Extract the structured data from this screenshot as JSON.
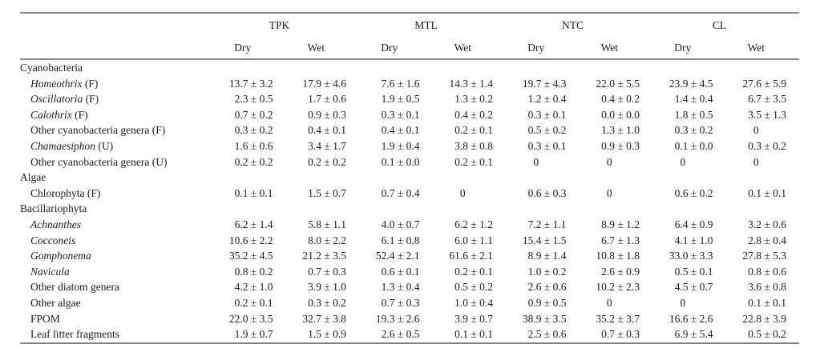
{
  "page": {
    "background_color": "#ffffff",
    "text_color": "#1d1d27",
    "rule_color": "#8a8a8a"
  },
  "table": {
    "column_groups": [
      {
        "label": "TPK",
        "sub": [
          "Dry",
          "Wet"
        ]
      },
      {
        "label": "MTL",
        "sub": [
          "Dry",
          "Wet"
        ]
      },
      {
        "label": "NTC",
        "sub": [
          "Dry",
          "Wet"
        ]
      },
      {
        "label": "CL",
        "sub": [
          "Dry",
          "Wet"
        ]
      }
    ],
    "rows": [
      {
        "type": "section",
        "label": "Cyanobacteria"
      },
      {
        "type": "data",
        "italic": true,
        "label": "Homeothrix",
        "suffix": " (F)",
        "values": [
          "13.7 ± 3.2",
          "17.9 ± 4.6",
          "7.6 ± 1.6",
          "14.3 ± 1.4",
          "19.7 ± 4.3",
          "22.0 ± 5.5",
          "23.9 ± 4.5",
          "27.6 ± 5.9"
        ]
      },
      {
        "type": "data",
        "italic": true,
        "label": "Oscillatoria",
        "suffix": " (F)",
        "values": [
          "2.3 ± 0.5",
          "1.7 ± 0.6",
          "1.9 ± 0.5",
          "1.3 ± 0.2",
          "1.2 ± 0.4",
          "0.4 ± 0.2",
          "1.4 ± 0.4",
          "6.7 ± 3.5"
        ]
      },
      {
        "type": "data",
        "italic": true,
        "label": "Calothrix",
        "suffix": " (F)",
        "values": [
          "0.7 ± 0.2",
          "0.9 ± 0.3",
          "0.3 ± 0.1",
          "0.4 ± 0.2",
          "0.3 ± 0.1",
          "0.0 ± 0.0",
          "1.8 ± 0.5",
          "3.5 ± 1.3"
        ]
      },
      {
        "type": "data",
        "italic": false,
        "label": "Other cyanobacteria genera (F)",
        "values": [
          "0.3 ± 0.2",
          "0.4 ± 0.1",
          "0.4 ± 0.1",
          "0.2 ± 0.1",
          "0.5 ± 0.2",
          "1.3 ± 1.0",
          "0.3 ± 0.2",
          "0"
        ]
      },
      {
        "type": "data",
        "italic": true,
        "label": "Chamaesiphon",
        "suffix": " (U)",
        "values": [
          "1.6 ± 0.6",
          "3.4 ± 1.7",
          "1.9 ± 0.4",
          "3.8 ± 0.8",
          "0.3 ± 0.1",
          "0.9 ± 0.3",
          "0.1 ± 0.0",
          "0.3 ± 0.2"
        ]
      },
      {
        "type": "data",
        "italic": false,
        "label": "Other cyanobacteria genera (U)",
        "values": [
          "0.2 ± 0.2",
          "0.2 ± 0.2",
          "0.1 ± 0.0",
          "0.2 ± 0.1",
          "0",
          "0",
          "0",
          "0"
        ]
      },
      {
        "type": "section",
        "label": "Algae"
      },
      {
        "type": "data",
        "italic": false,
        "label": "Chlorophyta (F)",
        "values": [
          "0.1 ± 0.1",
          "1.5 ± 0.7",
          "0.7 ± 0.4",
          "0",
          "0.6 ± 0.3",
          "0",
          "0.6 ± 0.2",
          "0.1 ± 0.1"
        ]
      },
      {
        "type": "section",
        "label": "Bacillariophyta"
      },
      {
        "type": "data",
        "italic": true,
        "label": "Achnanthes",
        "values": [
          "6.2 ± 1.4",
          "5.8 ± 1.1",
          "4.0 ± 0.7",
          "6.2 ± 1.2",
          "7.2 ± 1.1",
          "8.9 ± 1.2",
          "6.4 ± 0.9",
          "3.2 ± 0.6"
        ]
      },
      {
        "type": "data",
        "italic": true,
        "label": "Cocconeis",
        "values": [
          "10.6 ± 2.2",
          "8.0 ± 2.2",
          "6.1 ± 0.8",
          "6.0 ± 1.1",
          "15.4 ± 1.5",
          "6.7 ± 1.3",
          "4.1 ± 1.0",
          "2.8 ± 0.4"
        ]
      },
      {
        "type": "data",
        "italic": true,
        "label": "Gomphonema",
        "values": [
          "35.2 ± 4.5",
          "21.2 ± 3.5",
          "52.4 ± 2.1",
          "61.6 ± 2.1",
          "8.9 ± 1.4",
          "10.8 ± 1.8",
          "33.0 ± 3.3",
          "27.8 ± 5.3"
        ]
      },
      {
        "type": "data",
        "italic": true,
        "label": "Navicula",
        "values": [
          "0.8 ± 0.2",
          "0.7 ± 0.3",
          "0.6 ± 0.1",
          "0.2 ± 0.1",
          "1.0 ± 0.2",
          "2.6 ± 0.9",
          "0.5 ± 0.1",
          "0.8 ± 0.6"
        ]
      },
      {
        "type": "data",
        "italic": false,
        "label": "Other diatom genera",
        "values": [
          "4.2 ± 1.0",
          "3.9 ± 1.0",
          "1.3 ± 0.4",
          "0.5 ± 0.2",
          "2.6 ± 0.6",
          "10.2 ± 2.3",
          "4.5 ± 0.7",
          "3.6 ± 0.8"
        ]
      },
      {
        "type": "data",
        "italic": false,
        "label": "Other algae",
        "values": [
          "0.2 ± 0.1",
          "0.3 ± 0.2",
          "0.7 ± 0.3",
          "1.0 ± 0.4",
          "0.9 ± 0.5",
          "0",
          "0",
          "0.1 ± 0.1"
        ]
      },
      {
        "type": "data",
        "italic": false,
        "label": "FPOM",
        "values": [
          "22.0 ± 3.5",
          "32.7 ± 3.8",
          "19.3 ± 2.6",
          "3.9 ± 0.7",
          "38.9 ± 3.5",
          "35.2 ± 3.7",
          "16.6 ± 2.6",
          "22.8 ± 3.9"
        ]
      },
      {
        "type": "data",
        "italic": false,
        "label": "Leaf litter fragments",
        "values": [
          "1.9 ± 0.7",
          "1.5 ± 0.9",
          "2.6 ± 0.5",
          "0.1 ± 0.1",
          "2.5 ± 0.6",
          "0.7 ± 0.3",
          "6.9 ± 5.4",
          "0.5 ± 0.2"
        ]
      }
    ]
  }
}
